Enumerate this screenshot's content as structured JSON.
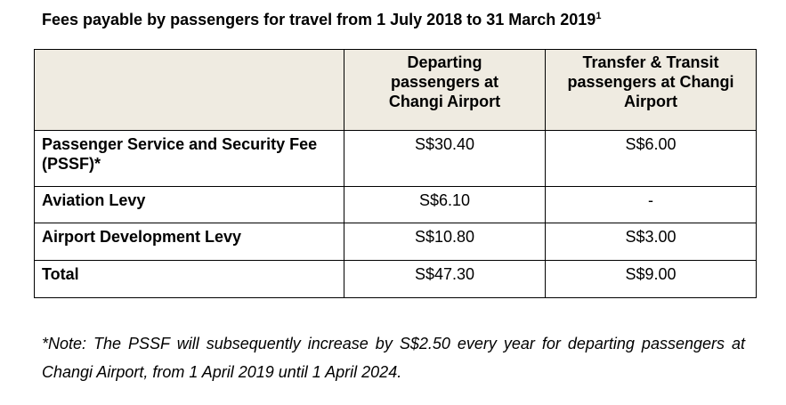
{
  "title": {
    "text": "Fees payable by passengers for travel from 1 July 2018 to 31 March 2019",
    "footnote_marker": "1"
  },
  "table": {
    "columns": [
      "",
      "Departing passengers at Changi Airport",
      "Transfer & Transit passengers at Changi Airport"
    ],
    "rows": [
      {
        "label": "Passenger Service and Security Fee (PSSF)*",
        "departing": "S$30.40",
        "transfer": "S$6.00"
      },
      {
        "label": "Aviation Levy",
        "departing": "S$6.10",
        "transfer": "-"
      },
      {
        "label": "Airport Development Levy",
        "departing": "S$10.80",
        "transfer": "S$3.00"
      },
      {
        "label": "Total",
        "departing": "S$47.30",
        "transfer": "S$9.00"
      }
    ]
  },
  "note": "*Note: The PSSF will subsequently increase by S$2.50 every year for departing passengers at Changi Airport, from 1 April 2019 until 1 April 2024."
}
